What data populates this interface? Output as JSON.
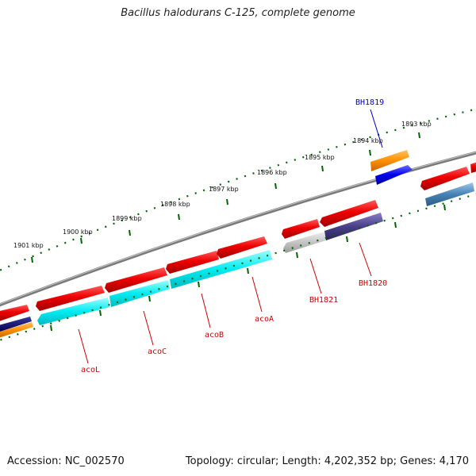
{
  "title": "Bacillus halodurans C-125, complete genome",
  "accession": "Accession: NC_002570",
  "topology": "Topology: circular; Length: 4,202,352 bp; Genes: 4,170",
  "kbp_labels": [
    "1901 kbp",
    "1900 kbp",
    "1899 kbp",
    "1898 kbp",
    "1897 kbp",
    "1896 kbp",
    "1895 kbp",
    "1894 kbp",
    "1893 kbp"
  ],
  "genes": [
    {
      "name": "acoL",
      "color": "#cc0000"
    },
    {
      "name": "acoC",
      "color": "#cc0000"
    },
    {
      "name": "acoB",
      "color": "#cc0000"
    },
    {
      "name": "acoA",
      "color": "#cc0000"
    },
    {
      "name": "BH1821",
      "color": "#cc0000"
    },
    {
      "name": "BH1820",
      "color": "#cc0000"
    },
    {
      "name": "BH1819",
      "color": "#0000cc"
    }
  ],
  "colors": {
    "backbone": "#888888",
    "forward_cds": "#e00000",
    "reverse_cyan": "#00e0e8",
    "reverse_gray": "#b8b8b8",
    "reverse_purple": "#4a3f8a",
    "reverse_steel": "#4682b4",
    "reverse_blue": "#0000ee",
    "orange": "#ff8c00",
    "navy": "#000080",
    "ticks": "#006400"
  }
}
